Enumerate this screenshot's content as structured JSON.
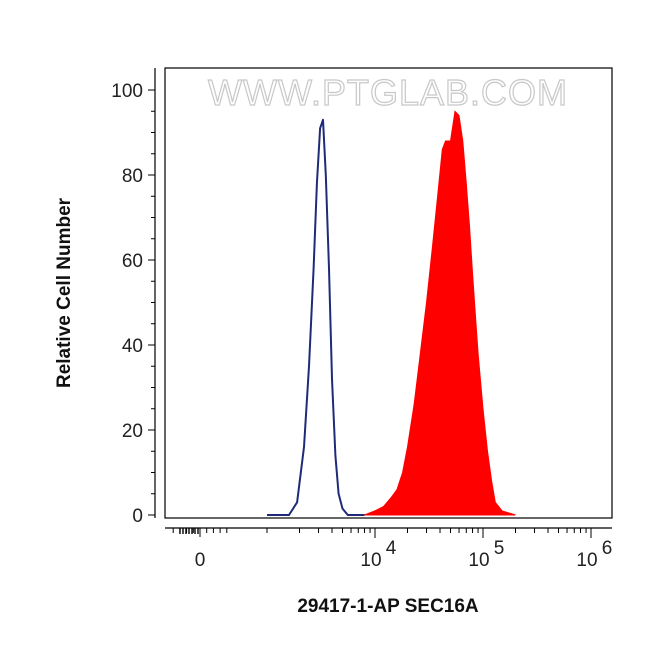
{
  "chart_data": {
    "type": "area",
    "watermark": "WWW.PTGLAB.COM",
    "xlabel": "29417-1-AP SEC16A",
    "ylabel": "Relative Cell Number",
    "ylim": [
      0,
      100
    ],
    "xscale": "biexponential (log above 10^3)",
    "y_ticks": [
      "0",
      "20",
      "40",
      "60",
      "80",
      "100"
    ],
    "x_ticks": [
      {
        "base": "0",
        "exp": ""
      },
      {
        "base": "10",
        "exp": "4"
      },
      {
        "base": "10",
        "exp": "5"
      },
      {
        "base": "10",
        "exp": "6"
      }
    ],
    "grid": false,
    "series": [
      {
        "style": "outline",
        "color": "#1f2a7a",
        "x": [
          1000,
          1600,
          1900,
          2200,
          2450,
          2700,
          2900,
          3100,
          3300,
          3500,
          3750,
          4000,
          4300,
          4600,
          5000,
          5600,
          6500,
          8000
        ],
        "y": [
          0,
          0,
          3,
          16,
          35,
          58,
          78,
          91,
          93,
          80,
          58,
          32,
          14,
          5,
          1.5,
          0,
          0,
          0
        ]
      },
      {
        "style": "filled",
        "color": "#ff0000",
        "x": [
          8000,
          10000,
          12000,
          14000,
          16000,
          18000,
          20000,
          23000,
          26000,
          30000,
          34000,
          38000,
          42000,
          45000,
          50000,
          55000,
          60000,
          65000,
          70000,
          75000,
          80000,
          85000,
          90000,
          100000,
          110000,
          120000,
          130000,
          150000,
          200000
        ],
        "y": [
          0,
          1,
          2,
          4,
          6,
          10,
          16,
          26,
          37,
          50,
          63,
          75,
          86,
          88,
          88,
          95,
          94,
          88,
          78,
          68,
          57,
          47,
          38,
          25,
          15,
          8,
          3,
          1,
          0
        ]
      }
    ]
  }
}
